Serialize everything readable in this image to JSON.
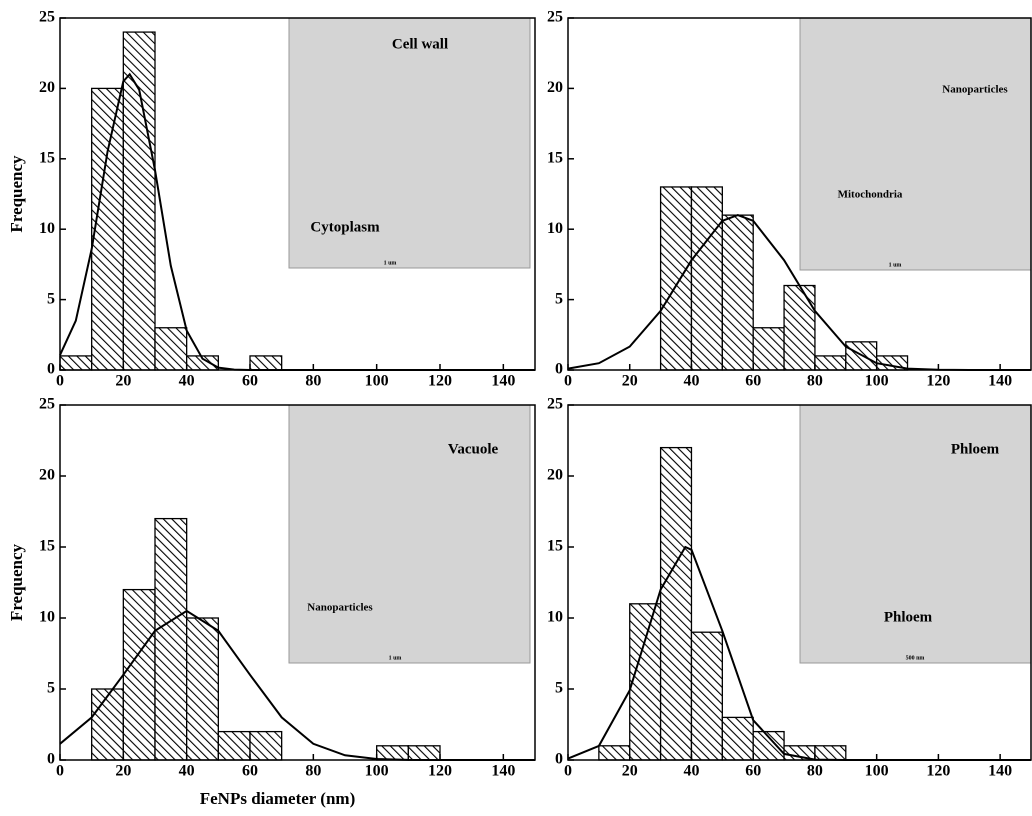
{
  "chart_data": [
    {
      "type": "histogram",
      "color": "#000000",
      "bins": [
        0,
        10,
        20,
        30,
        40,
        50,
        60,
        70
      ],
      "counts": [
        1,
        20,
        24,
        3,
        1,
        0,
        1
      ],
      "curve": {
        "x": [
          0,
          5,
          10,
          15,
          20,
          22,
          25,
          30,
          35,
          40,
          45,
          50,
          55,
          60,
          150
        ],
        "y": [
          1.06,
          3.5,
          8.6,
          15.5,
          20.5,
          21,
          19.9,
          14.2,
          7.4,
          2.8,
          0.8,
          0.17,
          0.03,
          0,
          0
        ]
      },
      "xlim": [
        0,
        150
      ],
      "ylim": [
        0,
        25
      ],
      "xticks": [
        0,
        20,
        40,
        60,
        80,
        100,
        120,
        140
      ],
      "yticks": [
        0,
        5,
        10,
        15,
        20,
        25
      ],
      "ylabel": "Frequency",
      "annotations": [
        "Cell wall",
        "Cytoplasm",
        "1 um"
      ]
    },
    {
      "type": "histogram",
      "color": "#000000",
      "bins": [
        30,
        40,
        50,
        60,
        70,
        80,
        90,
        100,
        110
      ],
      "counts": [
        13,
        13,
        11,
        3,
        6,
        1,
        2,
        1
      ],
      "curve": {
        "x": [
          0,
          10,
          20,
          30,
          40,
          50,
          55,
          60,
          70,
          80,
          90,
          100,
          110,
          120,
          130,
          150
        ],
        "y": [
          0.1,
          0.48,
          1.66,
          4.2,
          7.8,
          10.6,
          11,
          10.6,
          7.8,
          4.2,
          1.66,
          0.48,
          0.1,
          0.02,
          0,
          0
        ]
      },
      "xlim": [
        0,
        150
      ],
      "ylim": [
        0,
        25
      ],
      "xticks": [
        0,
        20,
        40,
        60,
        80,
        100,
        120,
        140
      ],
      "yticks": [
        0,
        5,
        10,
        15,
        20,
        25
      ],
      "annotations": [
        "Nanoparticles",
        "Mitochondria",
        "1 um"
      ]
    },
    {
      "type": "histogram",
      "color": "#000000",
      "bins": [
        10,
        20,
        30,
        40,
        50,
        60,
        70,
        80,
        90,
        100,
        110,
        120
      ],
      "counts": [
        5,
        12,
        17,
        10,
        2,
        2,
        0,
        0,
        0,
        1,
        1
      ],
      "curve": {
        "x": [
          0,
          10,
          20,
          30,
          40,
          50,
          60,
          70,
          80,
          90,
          100,
          110,
          120,
          150
        ],
        "y": [
          1.14,
          3.0,
          6.0,
          9.1,
          10.5,
          9.1,
          6.0,
          3.0,
          1.14,
          0.33,
          0.07,
          0.01,
          0,
          0
        ]
      },
      "xlim": [
        0,
        150
      ],
      "ylim": [
        0,
        25
      ],
      "xticks": [
        0,
        20,
        40,
        60,
        80,
        100,
        120,
        140
      ],
      "yticks": [
        0,
        5,
        10,
        15,
        20,
        25
      ],
      "ylabel": "Frequency",
      "xlabel": "FeNPs diameter (nm)",
      "annotations": [
        "Vacuole",
        "Nanoparticles",
        "1 um"
      ]
    },
    {
      "type": "histogram",
      "color": "#000000",
      "bins": [
        10,
        20,
        30,
        40,
        50,
        60,
        70,
        80,
        90
      ],
      "counts": [
        1,
        11,
        22,
        9,
        3,
        2,
        1,
        1
      ],
      "curve": {
        "x": [
          0,
          10,
          20,
          30,
          38,
          40,
          50,
          60,
          70,
          80,
          90,
          150
        ],
        "y": [
          0.1,
          0.99,
          4.9,
          12.0,
          15,
          14.8,
          9.1,
          2.8,
          0.43,
          0.03,
          0,
          0
        ]
      },
      "xlim": [
        0,
        150
      ],
      "ylim": [
        0,
        25
      ],
      "xticks": [
        0,
        20,
        40,
        60,
        80,
        100,
        120,
        140
      ],
      "yticks": [
        0,
        5,
        10,
        15,
        20,
        25
      ],
      "annotations": [
        "Phloem",
        "Phloem",
        "500 nm"
      ]
    }
  ]
}
